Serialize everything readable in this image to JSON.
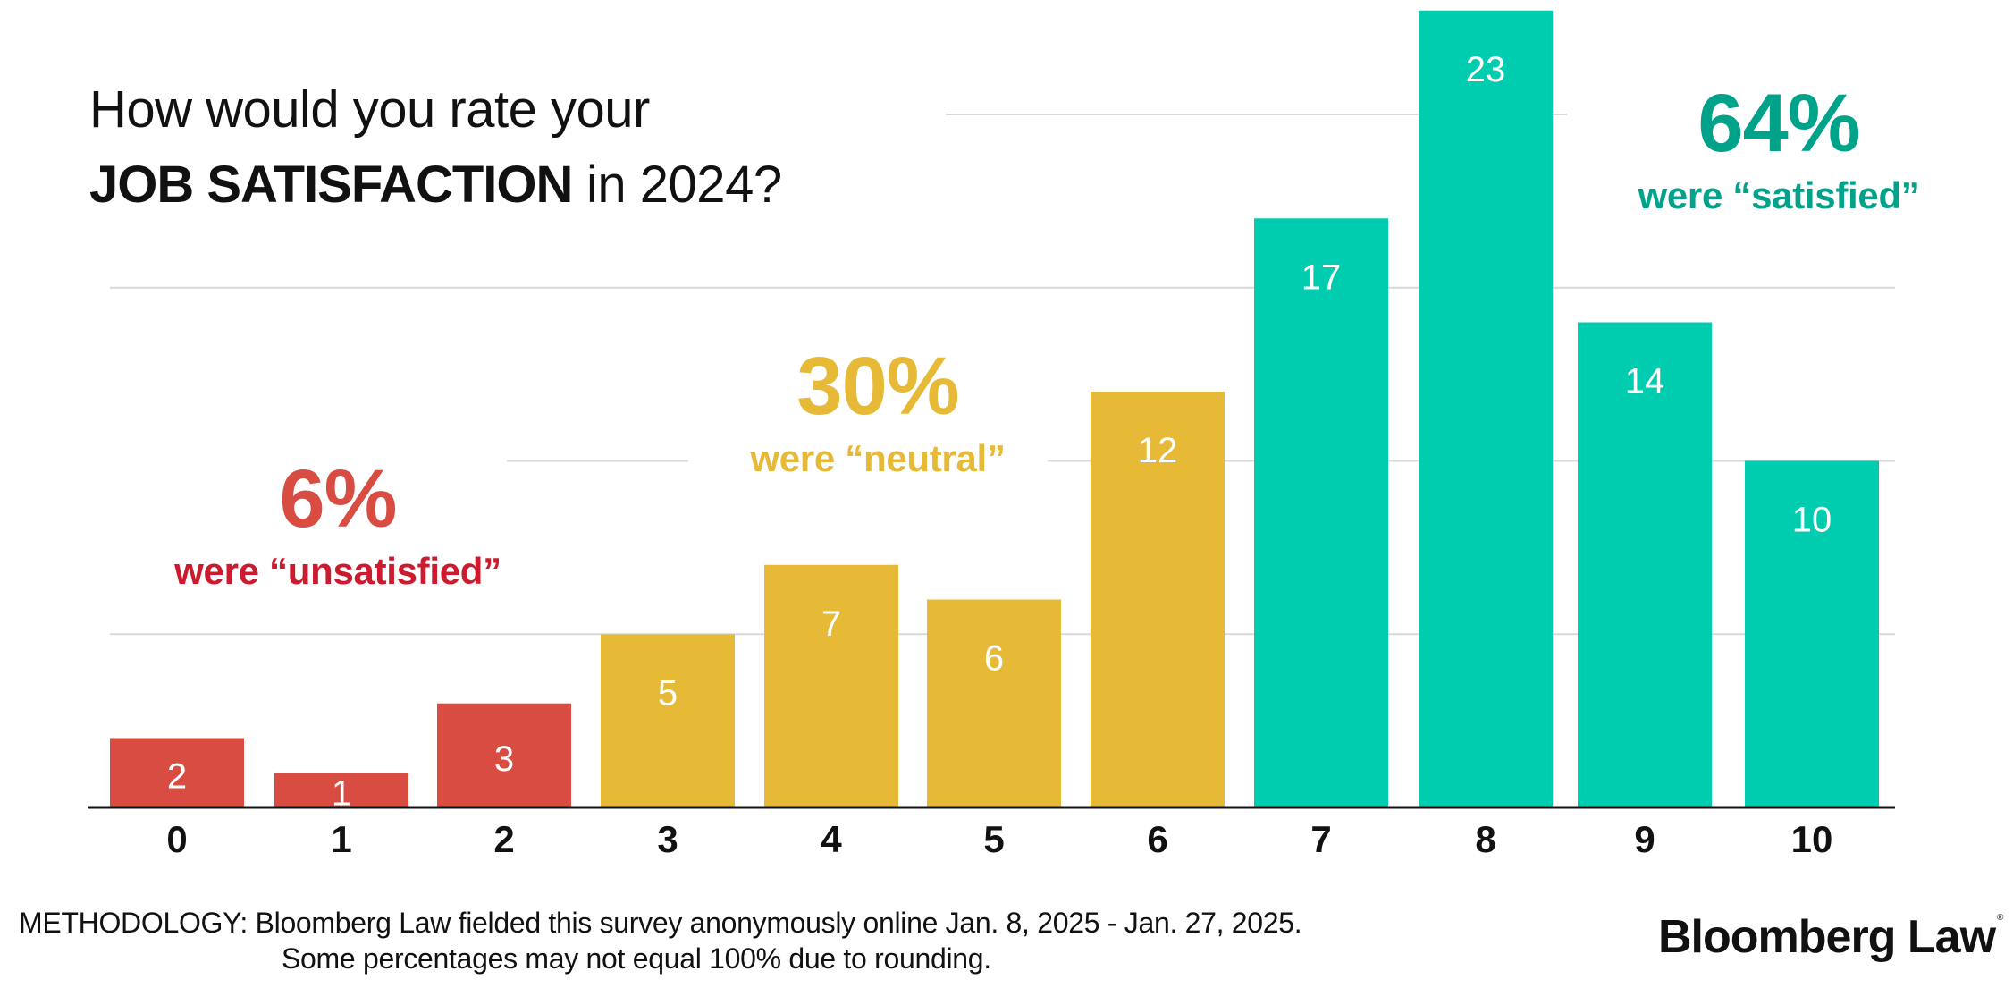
{
  "title": {
    "line1": "How would you rate your",
    "line2_strong": "JOB SATISFACTION",
    "line2_rest": " in 2024?"
  },
  "callouts": [
    {
      "pct": "6%",
      "label": "were “unsatisfied”",
      "pct_color": "#d94c41",
      "label_color": "#cc1b2e"
    },
    {
      "pct": "30%",
      "label": "were “neutral”",
      "pct_color": "#e6b937",
      "label_color": "#e6b937"
    },
    {
      "pct": "64%",
      "label": "were “satisfied”",
      "pct_color": "#00a38a",
      "label_color": "#00a38a"
    }
  ],
  "footer": {
    "line1": "METHODOLOGY: Bloomberg Law fielded this survey anonymously online Jan. 8, 2025 - Jan. 27, 2025.",
    "line2": "Some percentages may not equal 100% due to rounding."
  },
  "brand": {
    "name": "Bloomberg Law",
    "mark": "®"
  },
  "colors": {
    "unsatisfied": "#d94c41",
    "neutral": "#e6b937",
    "satisfied": "#00cdb0",
    "gridline": "#d9d9d9",
    "axis": "#111111"
  },
  "chart_data": {
    "type": "bar",
    "title": "How would you rate your JOB SATISFACTION in 2024?",
    "xlabel": "",
    "ylabel": "",
    "categories": [
      "0",
      "1",
      "2",
      "3",
      "4",
      "5",
      "6",
      "7",
      "8",
      "9",
      "10"
    ],
    "values": [
      2,
      1,
      3,
      5,
      7,
      6,
      12,
      17,
      23,
      14,
      10
    ],
    "groups": [
      "unsatisfied",
      "unsatisfied",
      "unsatisfied",
      "neutral",
      "neutral",
      "neutral",
      "neutral",
      "satisfied",
      "satisfied",
      "satisfied",
      "satisfied"
    ],
    "group_totals": {
      "unsatisfied": "6%",
      "neutral": "30%",
      "satisfied": "64%"
    },
    "ylim": [
      0,
      23
    ],
    "gridlines": [
      5,
      10,
      15,
      20
    ],
    "grid": true,
    "y_axis_labels": false,
    "legend": "none"
  }
}
